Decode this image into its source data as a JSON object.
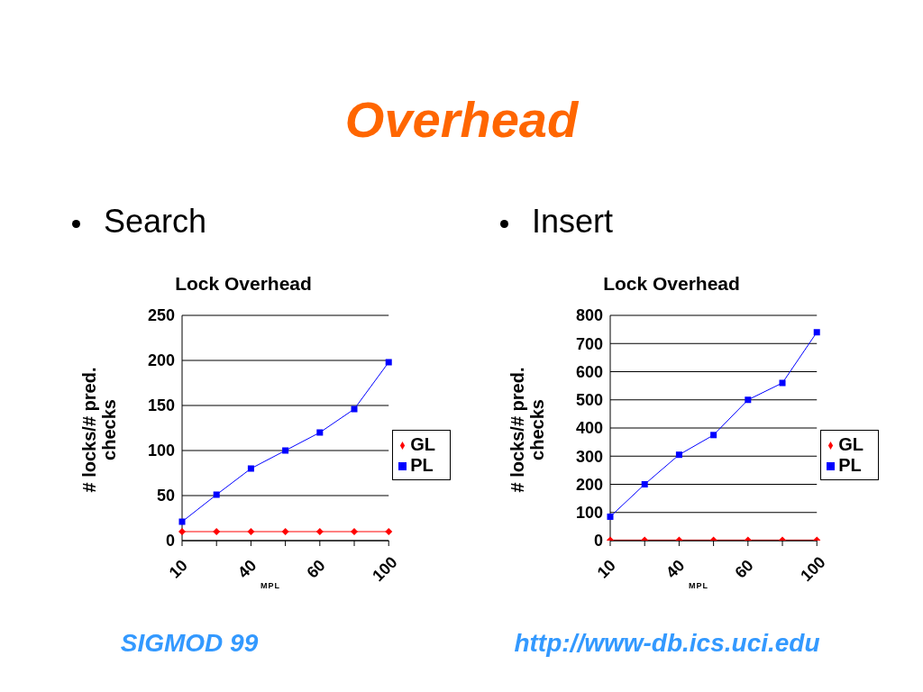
{
  "chart_data": [
    {
      "type": "line",
      "title": "Lock Overhead",
      "subtitle": "Search",
      "xlabel": "MPL",
      "ylabel": "# locks/# pred. checks",
      "annotations": [
        "Overhead",
        "SIGMOD 99"
      ],
      "categories": [
        "10",
        null,
        "40",
        null,
        "60",
        null,
        "100"
      ],
      "series": [
        {
          "name": "GL",
          "color": "#ff0000",
          "marker": "diamond",
          "values": [
            10,
            10,
            10,
            10,
            10,
            10,
            10
          ]
        },
        {
          "name": "PL",
          "color": "#0000ff",
          "marker": "square",
          "values": [
            21,
            51,
            80,
            100,
            120,
            146,
            198
          ]
        }
      ],
      "ylim": [
        0,
        250
      ],
      "yticks": [
        0,
        50,
        100,
        150,
        200,
        250
      ],
      "grid": "y",
      "legend": "right"
    },
    {
      "type": "line",
      "title": "Lock Overhead",
      "subtitle": "Insert",
      "xlabel": "MPL",
      "ylabel": "# locks/# pred. checks",
      "annotations": [
        "http://www-db.ics.uci.edu"
      ],
      "categories": [
        "10",
        null,
        "40",
        null,
        "60",
        null,
        "100"
      ],
      "series": [
        {
          "name": "GL",
          "color": "#ff0000",
          "marker": "diamond",
          "values": [
            2,
            2,
            2,
            2,
            2,
            2,
            2
          ]
        },
        {
          "name": "PL",
          "color": "#0000ff",
          "marker": "square",
          "values": [
            85,
            200,
            305,
            375,
            500,
            560,
            740
          ]
        }
      ],
      "ylim": [
        0,
        800
      ],
      "yticks": [
        0,
        100,
        200,
        300,
        400,
        500,
        600,
        700,
        800
      ],
      "grid": "y",
      "legend": "right"
    }
  ]
}
